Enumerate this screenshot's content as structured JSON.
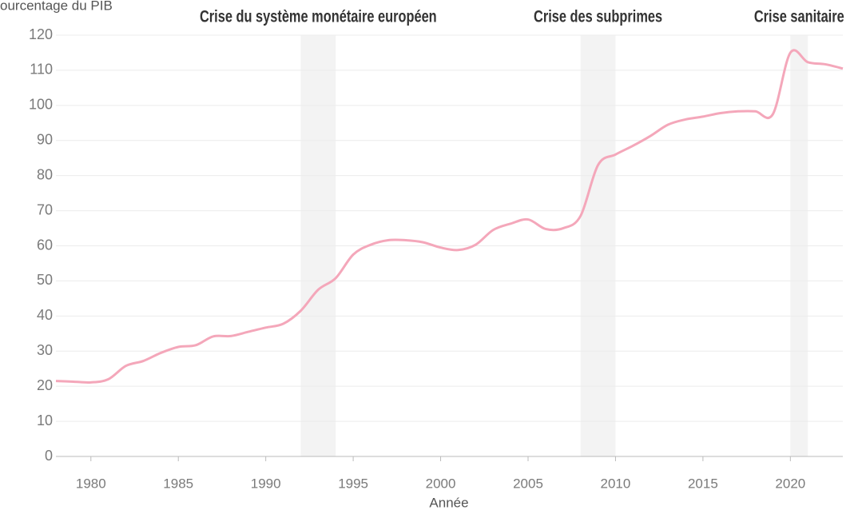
{
  "chart_data": {
    "type": "line",
    "y_axis_label": "ourcentage du PIB",
    "x_axis_label": "Année",
    "x": [
      1978,
      1979,
      1980,
      1981,
      1982,
      1983,
      1984,
      1985,
      1986,
      1987,
      1988,
      1989,
      1990,
      1991,
      1992,
      1993,
      1994,
      1995,
      1996,
      1997,
      1998,
      1999,
      2000,
      2001,
      2002,
      2003,
      2004,
      2005,
      2006,
      2007,
      2008,
      2009,
      2010,
      2011,
      2012,
      2013,
      2014,
      2015,
      2016,
      2017,
      2018,
      2019,
      2020,
      2021,
      2022,
      2023
    ],
    "series": [
      {
        "color": "#f4a7ba",
        "values": [
          21.5,
          21.3,
          21.1,
          22,
          25.8,
          27.2,
          29.5,
          31.2,
          31.7,
          34.2,
          34.3,
          35.5,
          36.7,
          37.8,
          41.5,
          47.5,
          50.8,
          57.5,
          60.3,
          61.6,
          61.6,
          61,
          59.5,
          58.8,
          60.3,
          64.5,
          66.3,
          67.5,
          64.8,
          65,
          68.5,
          83,
          86,
          88.5,
          91.3,
          94.5,
          96,
          96.8,
          97.8,
          98.3,
          98.3,
          97.5,
          115,
          112.3,
          111.7,
          110.5
        ]
      }
    ],
    "crises": [
      {
        "label": "Crise du système monétaire européen",
        "start": 1992,
        "end": 1994
      },
      {
        "label": "Crise des subprimes",
        "start": 2008,
        "end": 2010
      },
      {
        "label": "Crise sanitaire",
        "start": 2020,
        "end": 2021
      }
    ],
    "xlim": [
      1978,
      2023
    ],
    "ylim": [
      0,
      120
    ],
    "xticks": [
      1980,
      1985,
      1990,
      1995,
      2000,
      2005,
      2010,
      2015,
      2020
    ],
    "yticks": [
      0,
      10,
      20,
      30,
      40,
      50,
      60,
      70,
      80,
      90,
      100,
      110,
      120
    ],
    "grid": true
  }
}
